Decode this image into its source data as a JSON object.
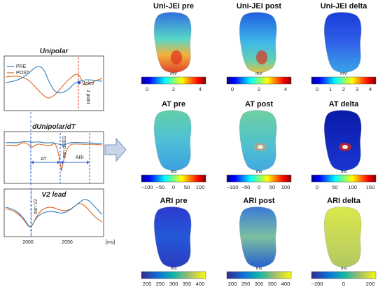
{
  "left_panel": {
    "unipolar": {
      "title": "Unipolar",
      "legend": [
        "PRE",
        "POST"
      ],
      "jelev_label": "Jelev",
      "jpoint_label": "J point"
    },
    "dunipolar": {
      "title": "dUnipolar/dT",
      "at_label": "AT",
      "ari_label": "ARI",
      "min_dueg_label": "min dUEG"
    },
    "v2": {
      "title": "V2 lead",
      "min_v2_label": "min V2",
      "x_ticks": [
        "2000",
        "2050"
      ],
      "x_unit": "[ms]"
    },
    "colors": {
      "pre": "#2f7fc1",
      "post": "#e0651e",
      "marker_red": "#e0312a",
      "marker_blue": "#2f5fd0"
    }
  },
  "arrow_icon": "right-arrow-icon",
  "maps": [
    {
      "title": "Uni-JEI pre",
      "unit": "mV",
      "cmap": "jet",
      "ticks": [
        "0",
        "2",
        "4"
      ]
    },
    {
      "title": "Uni-JEI post",
      "unit": "mV",
      "cmap": "jet",
      "ticks": [
        "0",
        "2",
        "4"
      ]
    },
    {
      "title": "Uni-JEI delta",
      "unit": "mV",
      "cmap": "jet",
      "ticks": [
        "0",
        "1",
        "2",
        "3",
        "4"
      ]
    },
    {
      "title": "AT pre",
      "unit": "ms",
      "cmap": "jet",
      "ticks": [
        "−100",
        "−50",
        "0",
        "50",
        "100"
      ]
    },
    {
      "title": "AT post",
      "unit": "ms",
      "cmap": "jet",
      "ticks": [
        "−100",
        "−50",
        "0",
        "50",
        "100"
      ]
    },
    {
      "title": "AT delta",
      "unit": "ms",
      "cmap": "jet",
      "ticks": [
        "0",
        "50",
        "100",
        "150"
      ]
    },
    {
      "title": "ARI pre",
      "unit": "ms",
      "cmap": "parula",
      "ticks": [
        "200",
        "250",
        "300",
        "350",
        "400"
      ]
    },
    {
      "title": "ARI post",
      "unit": "ms",
      "cmap": "parula",
      "ticks": [
        "200",
        "250",
        "300",
        "350",
        "400"
      ]
    },
    {
      "title": "ARI delta",
      "unit": "ms",
      "cmap": "parula",
      "ticks": [
        "−200",
        "0",
        "200"
      ]
    }
  ]
}
